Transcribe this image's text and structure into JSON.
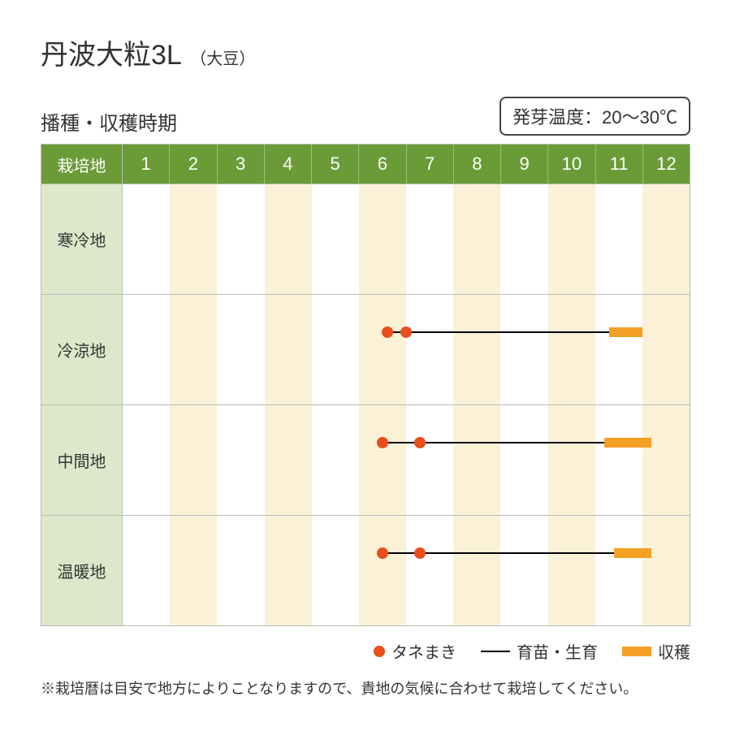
{
  "title": {
    "main": "丹波大粒3L",
    "sub": "（大豆）"
  },
  "subhead": "播種・収穫時期",
  "temp_box": "発芽温度：20〜30℃",
  "header_label": "栽培地",
  "months": [
    "1",
    "2",
    "3",
    "4",
    "5",
    "6",
    "7",
    "8",
    "9",
    "10",
    "11",
    "12"
  ],
  "month_count": 12,
  "colors": {
    "header_bg": "#6b9b37",
    "header_fg": "#ffffff",
    "label_bg": "#dce8c9",
    "stripe_odd": "#ffffff",
    "stripe_even": "#faf1d6",
    "border": "#bbbbbb",
    "seed": "#e94e1b",
    "grow_line": "#000000",
    "harvest": "#f3a024",
    "text": "#333333"
  },
  "legend": {
    "seed": "タネまき",
    "grow": "育苗・生育",
    "harvest": "収穫"
  },
  "rows": [
    {
      "label": "寒冷地",
      "tracks": []
    },
    {
      "label": "冷涼地",
      "tracks": [
        {
          "top_pct": 28,
          "seeds": [
            5.6,
            6.0
          ],
          "line": [
            5.6,
            10.3
          ],
          "harvest": [
            10.3,
            11.0
          ]
        }
      ]
    },
    {
      "label": "中間地",
      "tracks": [
        {
          "top_pct": 28,
          "seeds": [
            5.5,
            6.3
          ],
          "line": [
            5.5,
            10.2
          ],
          "harvest": [
            10.2,
            11.2
          ]
        }
      ]
    },
    {
      "label": "温暖地",
      "tracks": [
        {
          "top_pct": 28,
          "seeds": [
            5.5,
            6.3
          ],
          "line": [
            5.5,
            10.4
          ],
          "harvest": [
            10.4,
            11.2
          ]
        }
      ]
    }
  ],
  "footnote": "※栽培暦は目安で地方によりことなりますので、貴地の気候に合わせて栽培してください。"
}
